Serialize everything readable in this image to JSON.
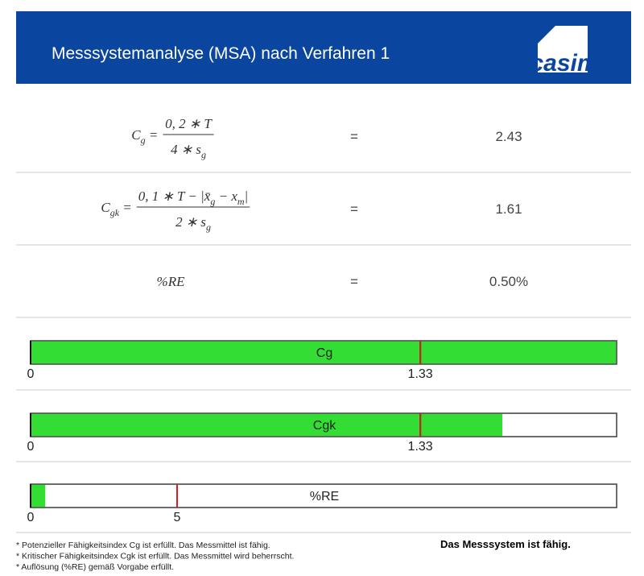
{
  "header": {
    "title": "Messsystemanalyse (MSA) nach Verfahren 1",
    "logo": "casim"
  },
  "formulas": [
    {
      "lhs": [
        {
          "t": "C"
        },
        {
          "sub": "g"
        },
        {
          "t": " ="
        }
      ],
      "numerator": [
        {
          "t": "0, 2 ∗ T"
        }
      ],
      "denominator": [
        {
          "t": "4 ∗ s"
        },
        {
          "sub": "g"
        }
      ],
      "equals": "=",
      "result": "2.43"
    },
    {
      "lhs": [
        {
          "t": "C"
        },
        {
          "sub": "gk"
        },
        {
          "t": " ="
        }
      ],
      "numerator": [
        {
          "t": "0, 1 ∗ T − |x̄"
        },
        {
          "sub": "g"
        },
        {
          "t": " − x"
        },
        {
          "sub": "m"
        },
        {
          "t": "|"
        }
      ],
      "denominator": [
        {
          "t": "2 ∗ s"
        },
        {
          "sub": "g"
        }
      ],
      "equals": "=",
      "result": "1.61"
    },
    {
      "lhs": [
        {
          "t": "%RE"
        }
      ],
      "equals": "=",
      "result": "0.50%"
    }
  ],
  "gauges": [
    {
      "label": "Cg",
      "value": 2.43,
      "xlim": [
        0,
        2
      ],
      "xticks": [
        0,
        1.33
      ],
      "threshold": 1.33,
      "color": "#33dd33",
      "threshold_color": "#d62020"
    },
    {
      "label": "Cgk",
      "value": 1.61,
      "xlim": [
        0,
        2
      ],
      "xticks": [
        0,
        1.33
      ],
      "threshold": 1.33,
      "color": "#33dd33",
      "threshold_color": "#d62020"
    },
    {
      "label": "%RE",
      "value": 0.5,
      "xlim": [
        0,
        20
      ],
      "xticks": [
        0,
        5
      ],
      "threshold": 5,
      "color": "#33dd33",
      "threshold_color": "#d62020"
    }
  ],
  "notes": [
    "* Potenzieller Fähigkeitsindex Cg ist erfüllt. Das Messmittel ist fähig.",
    "* Kritischer Fähigkeitsindex Cgk ist erfüllt. Das Messmittel wird beherrscht.",
    "* Auflösung (%RE) gemäß Vorgabe erfüllt."
  ],
  "conclusion": "Das Messsystem ist fähig."
}
